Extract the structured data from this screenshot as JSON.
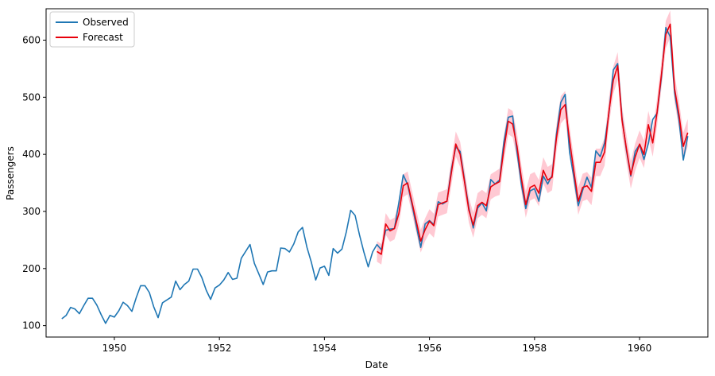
{
  "chart_data": {
    "type": "line",
    "title": "",
    "xlabel": "Date",
    "ylabel": "Passengers",
    "xlim": [
      1948.7,
      1961.3
    ],
    "ylim": [
      80,
      655
    ],
    "x_ticks": [
      1950,
      1952,
      1954,
      1956,
      1958,
      1960
    ],
    "x_tick_labels": [
      "1950",
      "1952",
      "1954",
      "1956",
      "1958",
      "1960"
    ],
    "y_ticks": [
      100,
      200,
      300,
      400,
      500,
      600
    ],
    "y_tick_labels": [
      "100",
      "200",
      "300",
      "400",
      "500",
      "600"
    ],
    "grid": false,
    "legend": {
      "position": "top-left",
      "entries": [
        "Observed",
        "Forecast"
      ]
    },
    "x_start": 1949.0,
    "x_step": 0.0833333,
    "series": [
      {
        "name": "Observed",
        "color": "#1f77b4",
        "values": [
          112,
          118,
          132,
          129,
          121,
          135,
          148,
          148,
          136,
          119,
          104,
          118,
          115,
          126,
          141,
          135,
          125,
          149,
          170,
          170,
          158,
          133,
          114,
          140,
          145,
          150,
          178,
          163,
          172,
          178,
          199,
          199,
          184,
          162,
          146,
          166,
          171,
          180,
          193,
          181,
          183,
          218,
          230,
          242,
          209,
          191,
          172,
          194,
          196,
          196,
          236,
          235,
          229,
          243,
          264,
          272,
          237,
          211,
          180,
          201,
          204,
          188,
          235,
          227,
          234,
          264,
          302,
          293,
          259,
          229,
          203,
          229,
          242,
          233,
          267,
          269,
          270,
          315,
          364,
          347,
          312,
          274,
          237,
          278,
          284,
          277,
          317,
          313,
          318,
          374,
          413,
          405,
          355,
          306,
          271,
          306,
          315,
          301,
          356,
          348,
          355,
          422,
          465,
          467,
          404,
          347,
          305,
          336,
          340,
          318,
          362,
          348,
          363,
          435,
          491,
          505,
          404,
          359,
          310,
          337,
          360,
          342,
          406,
          396,
          420,
          472,
          548,
          559,
          463,
          407,
          362,
          405,
          417,
          391,
          419,
          461,
          472,
          535,
          622,
          606,
          508,
          461,
          390,
          432
        ]
      },
      {
        "name": "Forecast",
        "color": "#e8000b",
        "x_start": 1955.0,
        "values": [
          230,
          225,
          278,
          266,
          270,
          296,
          345,
          350,
          316,
          282,
          248,
          268,
          283,
          275,
          312,
          315,
          318,
          368,
          418,
          400,
          352,
          302,
          276,
          310,
          316,
          310,
          343,
          348,
          352,
          410,
          458,
          453,
          414,
          358,
          312,
          342,
          346,
          332,
          372,
          355,
          360,
          428,
          478,
          487,
          425,
          370,
          318,
          342,
          345,
          335,
          386,
          386,
          404,
          475,
          530,
          555,
          460,
          410,
          364,
          395,
          418,
          400,
          452,
          420,
          474,
          540,
          610,
          628,
          515,
          470,
          414,
          438
        ],
        "ci_halfwidth": [
          18,
          18,
          19,
          19,
          19,
          20,
          20,
          20,
          20,
          20,
          20,
          20,
          21,
          21,
          21,
          21,
          21,
          22,
          22,
          22,
          22,
          22,
          22,
          22,
          22,
          22,
          22,
          22,
          23,
          23,
          23,
          23,
          23,
          23,
          23,
          23,
          23,
          23,
          23,
          23,
          23,
          24,
          24,
          24,
          24,
          24,
          24,
          24,
          24,
          24,
          24,
          24,
          24,
          24,
          24,
          24,
          24,
          24,
          24,
          24,
          24,
          24,
          24,
          24,
          24,
          24,
          24,
          24,
          24,
          24,
          24,
          24
        ],
        "ci_color": "#ffc0cb"
      }
    ]
  }
}
